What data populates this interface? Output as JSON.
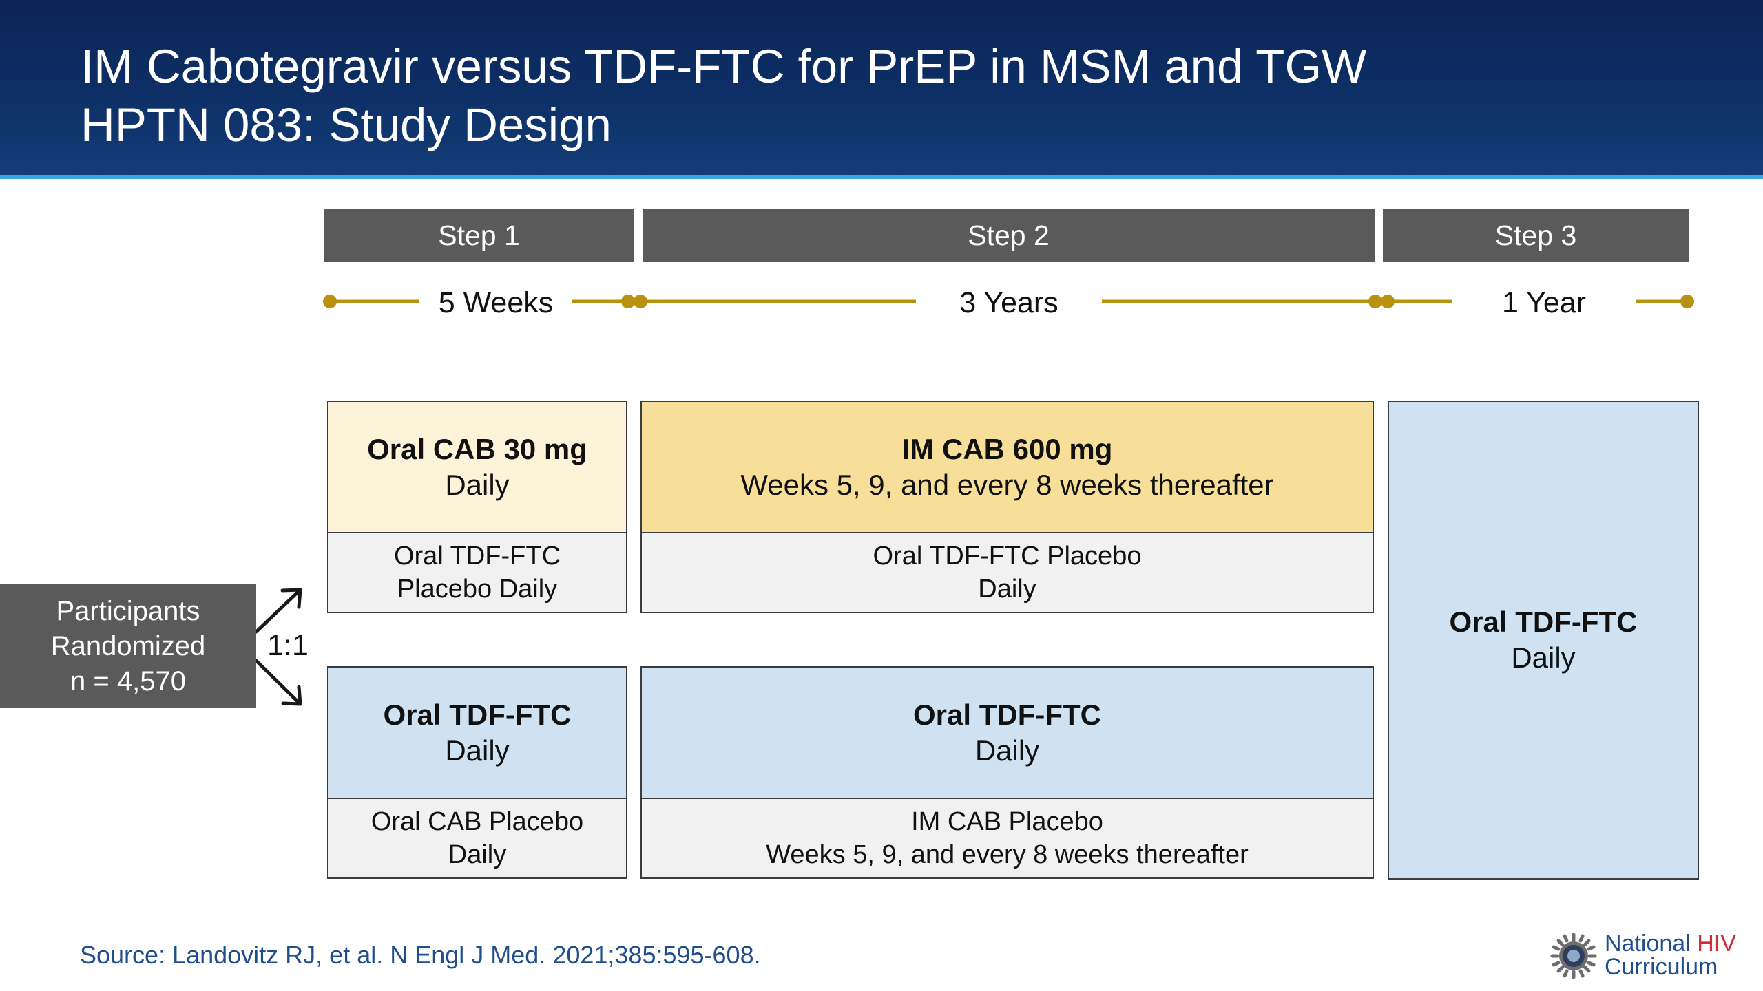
{
  "header": {
    "title_line1": "IM Cabotegravir versus TDF-FTC for PrEP in MSM and TGW",
    "title_line2": "HPTN 083: Study Design"
  },
  "steps": [
    {
      "label": "Step 1",
      "duration": "5 Weeks"
    },
    {
      "label": "Step 2",
      "duration": "3 Years"
    },
    {
      "label": "Step 3",
      "duration": "1 Year"
    }
  ],
  "randomization": {
    "line1": "Participants",
    "line2": "Randomized",
    "line3": "n = 4,570",
    "ratio": "1:1"
  },
  "arm_a": {
    "step1_active": {
      "title": "Oral CAB 30 mg",
      "sub": "Daily"
    },
    "step1_placebo": {
      "line1": "Oral TDF-FTC",
      "line2": "Placebo Daily"
    },
    "step2_active": {
      "title": "IM CAB 600 mg",
      "sub": "Weeks 5, 9, and every 8 weeks thereafter"
    },
    "step2_placebo": {
      "line1": "Oral TDF-FTC Placebo",
      "line2": "Daily"
    }
  },
  "arm_b": {
    "step1_active": {
      "title": "Oral TDF-FTC",
      "sub": "Daily"
    },
    "step1_placebo": {
      "line1": "Oral CAB Placebo",
      "line2": "Daily"
    },
    "step2_active": {
      "title": "Oral TDF-FTC",
      "sub": "Daily"
    },
    "step2_placebo": {
      "line1": "IM CAB Placebo",
      "line2": "Weeks 5, 9, and every 8 weeks thereafter"
    }
  },
  "step3_box": {
    "title": "Oral TDF-FTC",
    "sub": "Daily"
  },
  "footer": {
    "source": "Source: Landovitz RJ, et al. N Engl J Med. 2021;385:595-608.",
    "logo_line1_a": "National ",
    "logo_line1_b": "HIV",
    "logo_line2": "Curriculum",
    "logo_icon": "sun-gear-icon"
  },
  "colors": {
    "header_bg": "#0e3168",
    "header_rule": "#3aa8e0",
    "step_bar": "#5a5a5a",
    "timeline": "#b8910f",
    "cab_light": "#fdf3d9",
    "cab_gold": "#f7df99",
    "tdf_blue": "#cfe2f1",
    "placebo_grey": "#f1f1f1",
    "source_text": "#1f4e8c",
    "logo_red": "#c8303a"
  }
}
